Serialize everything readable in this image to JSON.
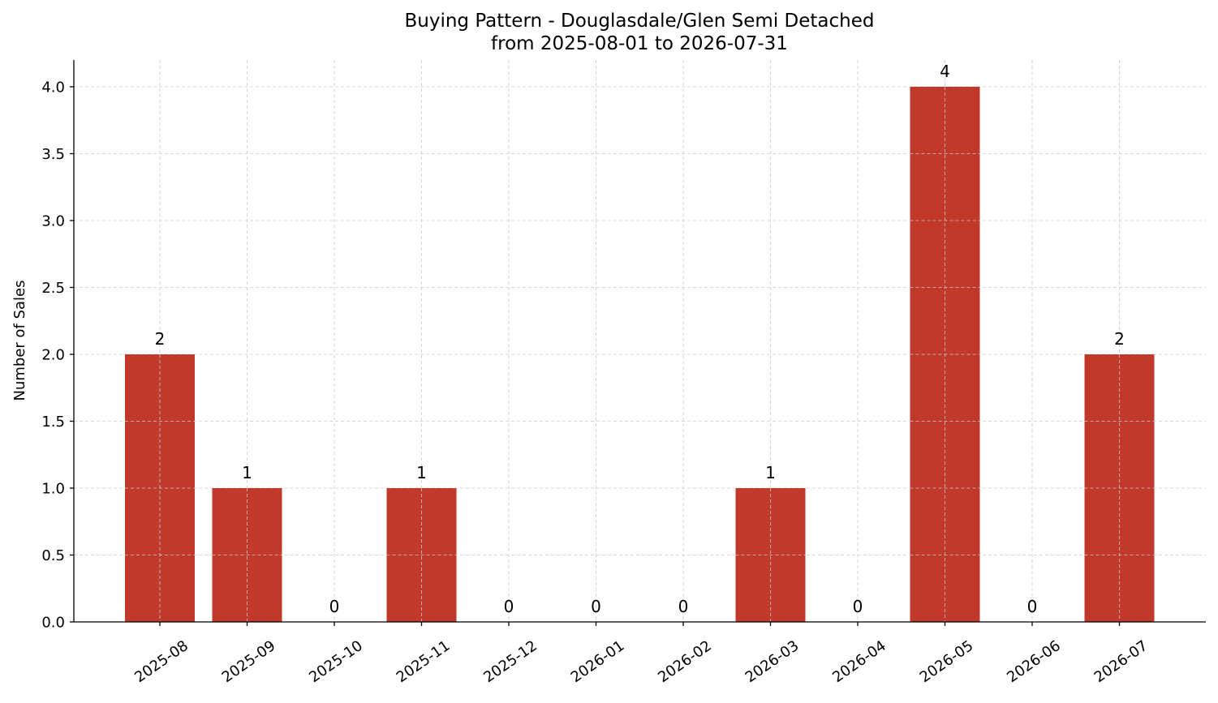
{
  "chart_data": {
    "type": "bar",
    "title": "Buying Pattern - Douglasdale/Glen Semi Detached",
    "subtitle": "from 2025-08-01 to 2026-07-31",
    "xlabel": "",
    "ylabel": "Number of Sales",
    "categories": [
      "2025-08",
      "2025-09",
      "2025-10",
      "2025-11",
      "2025-12",
      "2026-01",
      "2026-02",
      "2026-03",
      "2026-04",
      "2026-05",
      "2026-06",
      "2026-07"
    ],
    "values": [
      2,
      1,
      0,
      1,
      0,
      0,
      0,
      1,
      0,
      4,
      0,
      2
    ],
    "data_labels": [
      "2",
      "1",
      "0",
      "1",
      "0",
      "0",
      "0",
      "1",
      "0",
      "4",
      "0",
      "2"
    ],
    "ylim": [
      0,
      4.2
    ],
    "yticks": [
      0.0,
      0.5,
      1.0,
      1.5,
      2.0,
      2.5,
      3.0,
      3.5,
      4.0
    ],
    "ytick_labels": [
      "0.0",
      "0.5",
      "1.0",
      "1.5",
      "2.0",
      "2.5",
      "3.0",
      "3.5",
      "4.0"
    ],
    "grid": true,
    "bar_color": "#c0392b",
    "grid_color": "#cccccc"
  }
}
